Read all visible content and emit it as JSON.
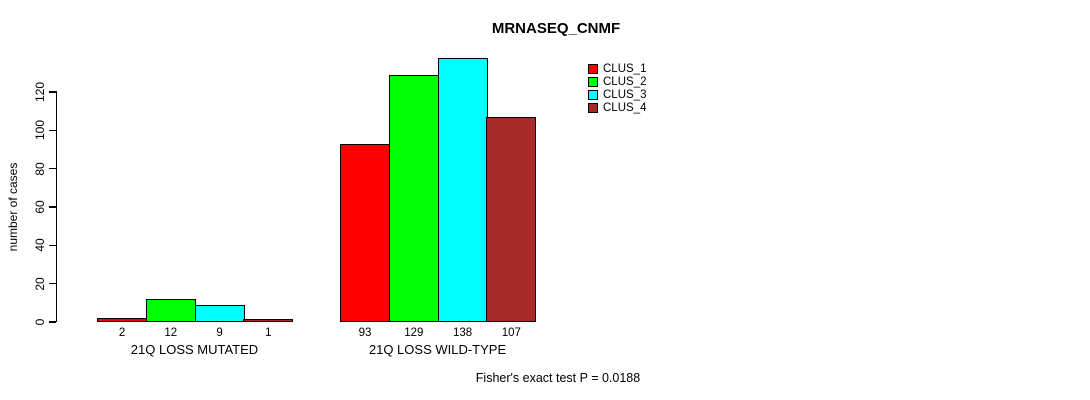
{
  "chart_data": {
    "type": "bar",
    "title": "MRNASEQ_CNMF",
    "xlabel": "",
    "ylabel": "number of cases",
    "categories": [
      "21Q LOSS MUTATED",
      "21Q LOSS WILD-TYPE"
    ],
    "series": [
      {
        "name": "CLUS_1",
        "color": "#FF0000",
        "values": [
          2,
          93
        ]
      },
      {
        "name": "CLUS_2",
        "color": "#00FF00",
        "values": [
          12,
          129
        ]
      },
      {
        "name": "CLUS_3",
        "color": "#00FFFF",
        "values": [
          9,
          138
        ]
      },
      {
        "name": "CLUS_4",
        "color": "#A52A2A",
        "values": [
          1,
          107
        ]
      }
    ],
    "yticks": [
      0,
      20,
      40,
      60,
      80,
      100,
      120
    ],
    "ylim": [
      0,
      140
    ],
    "grid": false,
    "bar_value_labels": true,
    "legend_position": "top-right",
    "legend_entries": [
      "CLUS_1",
      "CLUS_2",
      "CLUS_3",
      "CLUS_4"
    ],
    "annotation": "Fisher's exact test P = 0.0188"
  }
}
